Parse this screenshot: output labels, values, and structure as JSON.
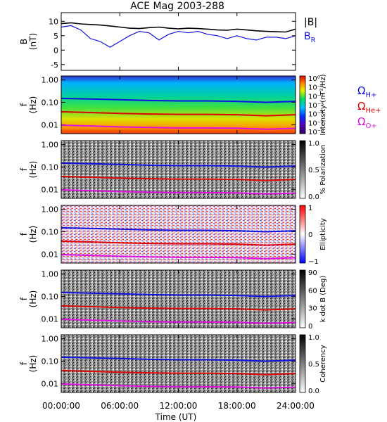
{
  "chart_data": {
    "title": "ACE Mag 2003-288",
    "xlabel": "Time (UT)",
    "x_tick_labels": [
      "00:00:00",
      "06:00:00",
      "12:00:00",
      "18:00:00",
      "24:00:00"
    ],
    "x_range_hours": [
      0,
      24
    ],
    "panels": [
      {
        "type": "line",
        "ylabel": "B (nT)",
        "ylim": [
          -7,
          13
        ],
        "y_ticks": [
          10,
          5,
          0,
          -5
        ],
        "legend": [
          {
            "label": "|B|",
            "color": "#000000"
          },
          {
            "label": "B",
            "subscript": "R",
            "color": "#1010e0"
          }
        ],
        "series": [
          {
            "name": "|B|",
            "color": "#000000",
            "x": [
              0,
              1,
              2,
              3,
              4,
              5,
              6,
              7,
              8,
              9,
              10,
              11,
              12,
              13,
              14,
              15,
              16,
              17,
              18,
              19,
              20,
              21,
              22,
              23,
              24
            ],
            "values": [
              9.2,
              9.5,
              9.1,
              8.9,
              8.7,
              8.4,
              8.0,
              7.6,
              7.5,
              7.8,
              8.0,
              7.6,
              7.4,
              7.6,
              7.5,
              7.3,
              7.0,
              6.9,
              7.3,
              7.0,
              6.7,
              6.5,
              6.4,
              6.3,
              7.3
            ]
          },
          {
            "name": "B",
            "color": "#1010e0",
            "x": [
              0,
              1,
              2,
              3,
              4,
              5,
              6,
              7,
              8,
              9,
              10,
              11,
              12,
              13,
              14,
              15,
              16,
              17,
              18,
              19,
              20,
              21,
              22,
              23,
              24
            ],
            "values": [
              8.0,
              8.5,
              7.0,
              4.0,
              3.0,
              1.0,
              3.0,
              5.0,
              6.5,
              6.0,
              3.5,
              5.5,
              6.5,
              6.0,
              6.5,
              5.5,
              5.0,
              4.0,
              5.0,
              4.0,
              3.5,
              4.5,
              4.5,
              4.0,
              5.0
            ]
          }
        ]
      },
      {
        "type": "heatmap",
        "ylabel": "f (Hz)",
        "y_ticks": [
          "1.00",
          "0.10",
          "0.01"
        ],
        "ylim": [
          0.004,
          1.5
        ],
        "colormap": "rainbow",
        "colorbar_label": "Intensity (nT²/Hz)",
        "colorbar_ticks": [
          "10⁰",
          "10⁻¹",
          "10⁻²",
          "10⁻³",
          "10⁻⁴",
          "10⁻⁵",
          "10⁻⁶"
        ],
        "extra_labels": [
          {
            "label": "Ω",
            "subscript": "H+",
            "color": "#1010e0"
          },
          {
            "label": "Ω",
            "subscript": "He+",
            "color": "#e00000"
          },
          {
            "label": "Ω",
            "subscript": "O+",
            "color": "#e010e0"
          }
        ]
      },
      {
        "type": "heatmap",
        "ylabel": "f (Hz)",
        "y_ticks": [
          "1.00",
          "0.10",
          "0.01"
        ],
        "ylim": [
          0.004,
          1.5
        ],
        "colormap": "gray",
        "colorbar_label": "% Polarization",
        "colorbar_ticks": [
          "1.0",
          "0.5",
          "0.0"
        ]
      },
      {
        "type": "heatmap",
        "ylabel": "f (Hz)",
        "y_ticks": [
          "1.00",
          "0.10",
          "0.01"
        ],
        "ylim": [
          0.004,
          1.5
        ],
        "colormap": "bluewhitered",
        "colorbar_label": "Ellipticity",
        "colorbar_ticks": [
          "1",
          "0",
          "−1"
        ]
      },
      {
        "type": "heatmap",
        "ylabel": "f (Hz)",
        "y_ticks": [
          "1.00",
          "0.10",
          "0.01"
        ],
        "ylim": [
          0.004,
          1.5
        ],
        "colormap": "gray",
        "colorbar_label": "k dot B (Deg)",
        "colorbar_ticks": [
          "90",
          "60",
          "30",
          "0"
        ]
      },
      {
        "type": "heatmap",
        "ylabel": "f (Hz)",
        "y_ticks": [
          "1.00",
          "0.10",
          "0.01"
        ],
        "ylim": [
          0.004,
          1.5
        ],
        "colormap": "gray",
        "colorbar_label": "Coherency",
        "colorbar_ticks": [
          "1.0",
          "0.5",
          "0.0"
        ]
      }
    ],
    "gyrofrequency_lines": [
      {
        "name": "Ω H+",
        "color": "#1010e0",
        "x": [
          0,
          3,
          6,
          9,
          12,
          15,
          18,
          21,
          24
        ],
        "values": [
          0.15,
          0.14,
          0.13,
          0.12,
          0.115,
          0.115,
          0.11,
          0.1,
          0.11
        ]
      },
      {
        "name": "Ω He+",
        "color": "#e00000",
        "x": [
          0,
          3,
          6,
          9,
          12,
          15,
          18,
          21,
          24
        ],
        "values": [
          0.038,
          0.035,
          0.032,
          0.03,
          0.029,
          0.029,
          0.028,
          0.025,
          0.028
        ]
      },
      {
        "name": "Ω O+",
        "color": "#e010e0",
        "x": [
          0,
          3,
          6,
          9,
          12,
          15,
          18,
          21,
          24
        ],
        "values": [
          0.0095,
          0.0088,
          0.008,
          0.0075,
          0.0072,
          0.0072,
          0.007,
          0.0063,
          0.0069
        ]
      }
    ]
  }
}
